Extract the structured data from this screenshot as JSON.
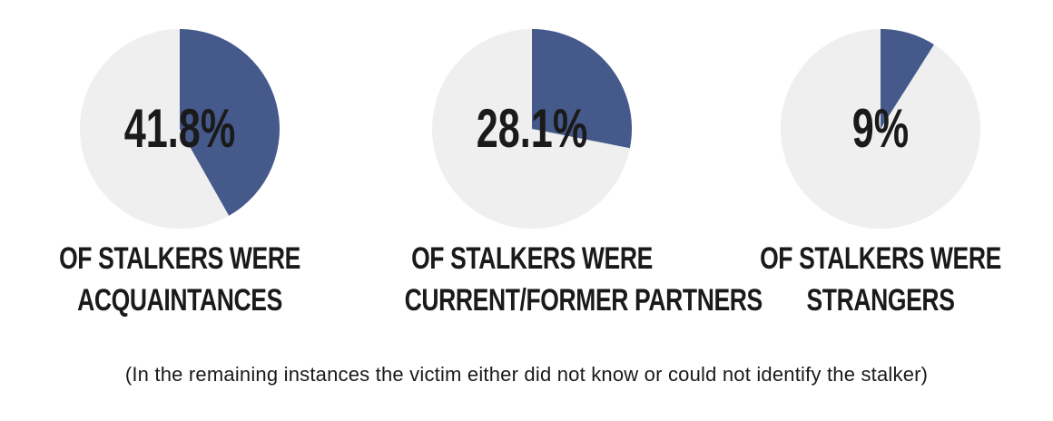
{
  "colors": {
    "slice": "#455a8b",
    "remainder": "#efefef",
    "text": "#1a1a1a"
  },
  "chart_data": [
    {
      "type": "pie",
      "value_label": "41.8%",
      "values": [
        41.8,
        58.2
      ],
      "caption_lines": [
        "OF STALKERS WERE",
        "ACQUAINTANCES"
      ]
    },
    {
      "type": "pie",
      "value_label": "28.1%",
      "values": [
        28.1,
        71.9
      ],
      "caption_lines": [
        "OF STALKERS WERE",
        "CURRENT/FORMER PARTNERS"
      ]
    },
    {
      "type": "pie",
      "value_label": "9%",
      "values": [
        9,
        91
      ],
      "caption_lines": [
        "OF STALKERS WERE",
        "STRANGERS"
      ]
    }
  ],
  "footnote": "(In the remaining instances the victim either did not know or could not identify the stalker)"
}
